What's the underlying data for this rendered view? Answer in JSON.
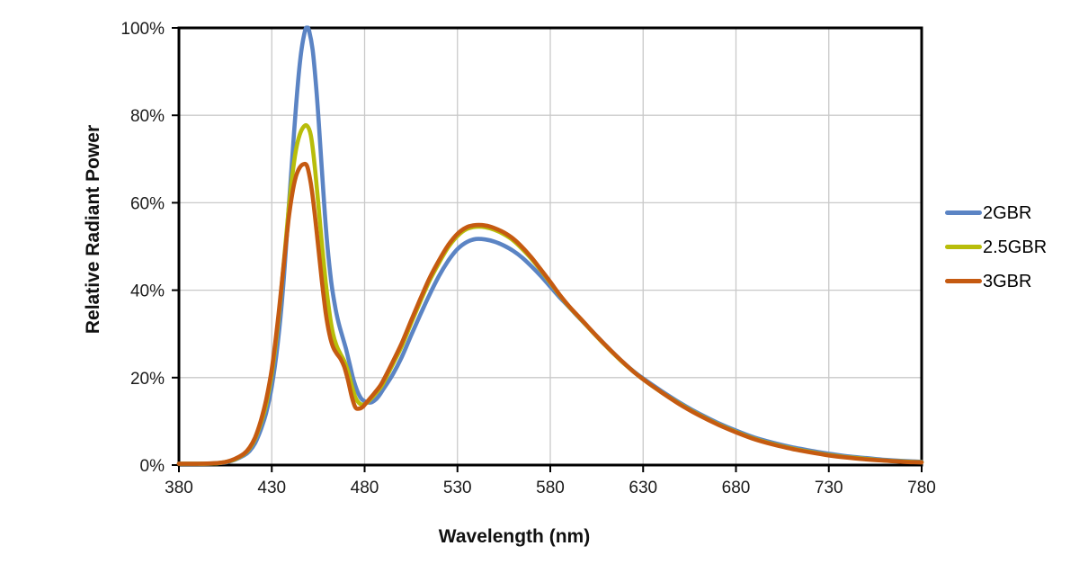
{
  "chart_data": {
    "type": "line",
    "title": "",
    "xlabel": "Wavelength (nm)",
    "ylabel": "Relative Radiant Power",
    "xlim": [
      380,
      780
    ],
    "ylim": [
      0,
      100
    ],
    "x_ticks": [
      380,
      430,
      480,
      530,
      580,
      630,
      680,
      730,
      780
    ],
    "x_tick_labels": [
      "380",
      "430",
      "480",
      "530",
      "580",
      "630",
      "680",
      "730",
      "780"
    ],
    "y_ticks": [
      0,
      20,
      40,
      60,
      80,
      100
    ],
    "y_tick_labels": [
      "0%",
      "20%",
      "40%",
      "60%",
      "80%",
      "100%"
    ],
    "grid": true,
    "legend_position": "right",
    "axis_color": "#000000",
    "grid_color": "#c9c9c9",
    "text_color": "#1a1a1a",
    "background_color": "#ffffff",
    "series": [
      {
        "name": "2GBR",
        "color": "#5B84C4",
        "points": [
          [
            380,
            0.3
          ],
          [
            385,
            0.3
          ],
          [
            390,
            0.3
          ],
          [
            395,
            0.3
          ],
          [
            400,
            0.4
          ],
          [
            405,
            0.6
          ],
          [
            410,
            1.2
          ],
          [
            415,
            2.2
          ],
          [
            418,
            3.2
          ],
          [
            421,
            5.0
          ],
          [
            424,
            8.0
          ],
          [
            427,
            12.0
          ],
          [
            430,
            18.0
          ],
          [
            433,
            27.0
          ],
          [
            436,
            40.0
          ],
          [
            439,
            58.0
          ],
          [
            442,
            76.0
          ],
          [
            444,
            87.0
          ],
          [
            446,
            95.0
          ],
          [
            448,
            99.5
          ],
          [
            449,
            100.0
          ],
          [
            450,
            99.5
          ],
          [
            452,
            95.0
          ],
          [
            454,
            86.0
          ],
          [
            456,
            74.0
          ],
          [
            458,
            61.0
          ],
          [
            460,
            50.0
          ],
          [
            462,
            42.0
          ],
          [
            464,
            36.5
          ],
          [
            466,
            32.5
          ],
          [
            468,
            29.5
          ],
          [
            470,
            26.5
          ],
          [
            472,
            23.0
          ],
          [
            474,
            19.5
          ],
          [
            476,
            17.0
          ],
          [
            478,
            15.3
          ],
          [
            480,
            14.6
          ],
          [
            482,
            14.3
          ],
          [
            484,
            14.4
          ],
          [
            486,
            15.0
          ],
          [
            488,
            16.0
          ],
          [
            490,
            17.3
          ],
          [
            495,
            20.6
          ],
          [
            500,
            24.7
          ],
          [
            505,
            29.6
          ],
          [
            510,
            34.4
          ],
          [
            515,
            39.0
          ],
          [
            520,
            43.2
          ],
          [
            525,
            46.7
          ],
          [
            530,
            49.4
          ],
          [
            535,
            51.0
          ],
          [
            540,
            51.7
          ],
          [
            545,
            51.6
          ],
          [
            550,
            51.1
          ],
          [
            555,
            50.2
          ],
          [
            560,
            49.0
          ],
          [
            565,
            47.4
          ],
          [
            570,
            45.4
          ],
          [
            575,
            43.2
          ],
          [
            580,
            40.8
          ],
          [
            585,
            38.4
          ],
          [
            590,
            36.2
          ],
          [
            595,
            33.9
          ],
          [
            600,
            31.7
          ],
          [
            605,
            29.5
          ],
          [
            610,
            27.3
          ],
          [
            615,
            25.2
          ],
          [
            620,
            23.2
          ],
          [
            625,
            21.4
          ],
          [
            630,
            19.8
          ],
          [
            640,
            16.9
          ],
          [
            650,
            14.2
          ],
          [
            660,
            11.8
          ],
          [
            670,
            9.7
          ],
          [
            680,
            7.9
          ],
          [
            690,
            6.3
          ],
          [
            700,
            5.1
          ],
          [
            710,
            4.1
          ],
          [
            720,
            3.3
          ],
          [
            730,
            2.6
          ],
          [
            740,
            2.0
          ],
          [
            750,
            1.6
          ],
          [
            760,
            1.2
          ],
          [
            770,
            0.95
          ],
          [
            780,
            0.75
          ]
        ]
      },
      {
        "name": "2.5GBR",
        "color": "#B8BD0A",
        "points": [
          [
            380,
            0.3
          ],
          [
            385,
            0.3
          ],
          [
            390,
            0.3
          ],
          [
            395,
            0.3
          ],
          [
            400,
            0.4
          ],
          [
            405,
            0.7
          ],
          [
            410,
            1.3
          ],
          [
            415,
            2.5
          ],
          [
            418,
            3.8
          ],
          [
            421,
            6.0
          ],
          [
            424,
            9.5
          ],
          [
            427,
            14.0
          ],
          [
            430,
            21.0
          ],
          [
            433,
            31.0
          ],
          [
            436,
            44.0
          ],
          [
            439,
            58.0
          ],
          [
            441,
            66.0
          ],
          [
            443,
            72.0
          ],
          [
            445,
            75.5
          ],
          [
            447,
            77.3
          ],
          [
            449,
            77.6
          ],
          [
            451,
            75.5
          ],
          [
            453,
            69.0
          ],
          [
            455,
            60.0
          ],
          [
            457,
            50.5
          ],
          [
            459,
            42.0
          ],
          [
            461,
            35.0
          ],
          [
            463,
            30.0
          ],
          [
            465,
            27.2
          ],
          [
            467,
            25.4
          ],
          [
            469,
            23.8
          ],
          [
            471,
            21.5
          ],
          [
            473,
            18.3
          ],
          [
            475,
            15.5
          ],
          [
            477,
            14.2
          ],
          [
            479,
            13.8
          ],
          [
            481,
            14.2
          ],
          [
            483,
            15.0
          ],
          [
            485,
            15.9
          ],
          [
            488,
            17.4
          ],
          [
            490,
            18.7
          ],
          [
            495,
            22.9
          ],
          [
            500,
            27.2
          ],
          [
            505,
            32.4
          ],
          [
            510,
            37.4
          ],
          [
            515,
            42.2
          ],
          [
            520,
            46.2
          ],
          [
            525,
            49.8
          ],
          [
            530,
            52.4
          ],
          [
            535,
            54.0
          ],
          [
            540,
            54.5
          ],
          [
            545,
            54.4
          ],
          [
            550,
            53.8
          ],
          [
            555,
            52.8
          ],
          [
            560,
            51.4
          ],
          [
            565,
            49.4
          ],
          [
            570,
            47.1
          ],
          [
            575,
            44.5
          ],
          [
            580,
            41.7
          ],
          [
            585,
            38.9
          ],
          [
            590,
            36.3
          ],
          [
            595,
            34.0
          ],
          [
            600,
            31.7
          ],
          [
            605,
            29.4
          ],
          [
            610,
            27.2
          ],
          [
            615,
            25.1
          ],
          [
            620,
            23.1
          ],
          [
            625,
            21.3
          ],
          [
            630,
            19.6
          ],
          [
            640,
            16.6
          ],
          [
            650,
            13.9
          ],
          [
            660,
            11.5
          ],
          [
            670,
            9.4
          ],
          [
            680,
            7.6
          ],
          [
            690,
            6.0
          ],
          [
            700,
            4.8
          ],
          [
            710,
            3.8
          ],
          [
            720,
            3.0
          ],
          [
            730,
            2.3
          ],
          [
            740,
            1.8
          ],
          [
            750,
            1.4
          ],
          [
            760,
            1.05
          ],
          [
            770,
            0.8
          ],
          [
            780,
            0.65
          ]
        ]
      },
      {
        "name": "3GBR",
        "color": "#C55A11",
        "points": [
          [
            380,
            0.3
          ],
          [
            385,
            0.3
          ],
          [
            390,
            0.3
          ],
          [
            395,
            0.35
          ],
          [
            400,
            0.45
          ],
          [
            405,
            0.7
          ],
          [
            410,
            1.4
          ],
          [
            415,
            2.6
          ],
          [
            418,
            4.0
          ],
          [
            421,
            6.3
          ],
          [
            424,
            10.0
          ],
          [
            427,
            15.0
          ],
          [
            430,
            22.0
          ],
          [
            433,
            32.0
          ],
          [
            436,
            44.0
          ],
          [
            439,
            56.0
          ],
          [
            441,
            62.0
          ],
          [
            443,
            66.0
          ],
          [
            445,
            68.0
          ],
          [
            447,
            68.8
          ],
          [
            449,
            68.4
          ],
          [
            451,
            64.5
          ],
          [
            453,
            58.0
          ],
          [
            455,
            50.0
          ],
          [
            457,
            42.0
          ],
          [
            459,
            35.0
          ],
          [
            461,
            30.0
          ],
          [
            463,
            27.0
          ],
          [
            465,
            25.5
          ],
          [
            467,
            24.3
          ],
          [
            469,
            22.5
          ],
          [
            471,
            19.5
          ],
          [
            473,
            15.8
          ],
          [
            475,
            13.2
          ],
          [
            477,
            12.9
          ],
          [
            479,
            13.3
          ],
          [
            481,
            14.3
          ],
          [
            483,
            15.3
          ],
          [
            485,
            16.3
          ],
          [
            488,
            17.9
          ],
          [
            490,
            19.3
          ],
          [
            495,
            23.5
          ],
          [
            500,
            27.9
          ],
          [
            505,
            33.0
          ],
          [
            510,
            38.0
          ],
          [
            515,
            42.8
          ],
          [
            520,
            46.8
          ],
          [
            525,
            50.3
          ],
          [
            530,
            52.9
          ],
          [
            535,
            54.4
          ],
          [
            540,
            54.9
          ],
          [
            545,
            54.8
          ],
          [
            550,
            54.2
          ],
          [
            555,
            53.2
          ],
          [
            560,
            51.8
          ],
          [
            565,
            49.8
          ],
          [
            570,
            47.4
          ],
          [
            575,
            44.7
          ],
          [
            580,
            41.9
          ],
          [
            585,
            39.0
          ],
          [
            590,
            36.4
          ],
          [
            595,
            34.1
          ],
          [
            600,
            31.8
          ],
          [
            605,
            29.5
          ],
          [
            610,
            27.3
          ],
          [
            615,
            25.2
          ],
          [
            620,
            23.2
          ],
          [
            625,
            21.3
          ],
          [
            630,
            19.6
          ],
          [
            640,
            16.6
          ],
          [
            650,
            13.8
          ],
          [
            660,
            11.4
          ],
          [
            670,
            9.3
          ],
          [
            680,
            7.5
          ],
          [
            690,
            5.9
          ],
          [
            700,
            4.7
          ],
          [
            710,
            3.7
          ],
          [
            720,
            2.9
          ],
          [
            730,
            2.2
          ],
          [
            740,
            1.7
          ],
          [
            750,
            1.3
          ],
          [
            760,
            1.0
          ],
          [
            770,
            0.75
          ],
          [
            780,
            0.6
          ]
        ]
      }
    ]
  }
}
